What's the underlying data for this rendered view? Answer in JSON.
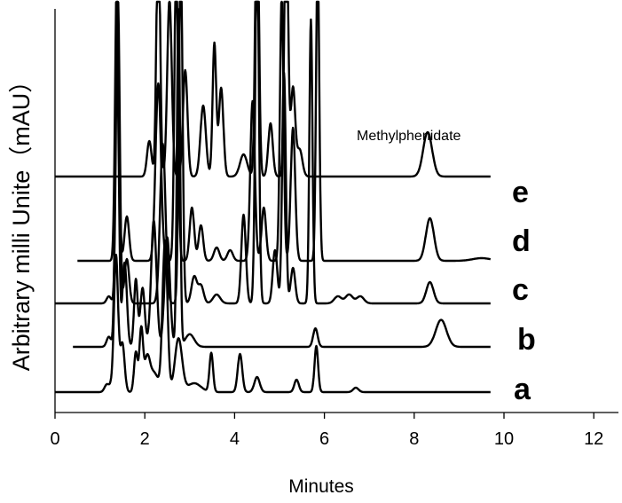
{
  "chart_data": {
    "type": "line",
    "title": "",
    "xlabel": "Minutes",
    "ylabel": "Arbitrary milli Unite（mAU）",
    "xlim": [
      0,
      12.5
    ],
    "x_ticks": [
      "0",
      "2",
      "4",
      "6",
      "8",
      "10",
      "12"
    ],
    "grid": false,
    "annotation": "Methylphenidate",
    "series": [
      {
        "name": "a",
        "baseline": 0,
        "peaks": [
          [
            1.15,
            8,
            0.05
          ],
          [
            1.28,
            9,
            0.06
          ],
          [
            1.36,
            150,
            0.045
          ],
          [
            1.5,
            55,
            0.05
          ],
          [
            1.8,
            45,
            0.04
          ],
          [
            1.92,
            70,
            0.04
          ],
          [
            2.05,
            35,
            0.06
          ],
          [
            2.2,
            22,
            0.1
          ],
          [
            2.45,
            170,
            0.055
          ],
          [
            2.75,
            60,
            0.08
          ],
          [
            3.1,
            10,
            0.15
          ],
          [
            3.48,
            44,
            0.04
          ],
          [
            4.12,
            43,
            0.05
          ],
          [
            4.5,
            17,
            0.06
          ],
          [
            5.38,
            14,
            0.05
          ],
          [
            5.82,
            52,
            0.04
          ],
          [
            6.7,
            5,
            0.06
          ]
        ]
      },
      {
        "name": "b",
        "baseline": 0,
        "peaks": [
          [
            1.2,
            12,
            0.05
          ],
          [
            1.38,
            350,
            0.04
          ],
          [
            1.55,
            100,
            0.05
          ],
          [
            1.8,
            80,
            0.04
          ],
          [
            1.95,
            70,
            0.05
          ],
          [
            2.2,
            150,
            0.06
          ],
          [
            2.5,
            130,
            0.06
          ],
          [
            2.75,
            400,
            0.035
          ],
          [
            3.0,
            15,
            0.1
          ],
          [
            5.8,
            22,
            0.05
          ],
          [
            8.6,
            32,
            0.12
          ]
        ]
      },
      {
        "name": "c",
        "baseline": 0,
        "peaks": [
          [
            1.2,
            8,
            0.05
          ],
          [
            1.4,
            350,
            0.04
          ],
          [
            1.6,
            50,
            0.05
          ],
          [
            2.4,
            180,
            0.06
          ],
          [
            2.8,
            400,
            0.04
          ],
          [
            3.1,
            30,
            0.06
          ],
          [
            3.25,
            20,
            0.06
          ],
          [
            3.6,
            10,
            0.08
          ],
          [
            4.2,
            100,
            0.05
          ],
          [
            4.5,
            420,
            0.04
          ],
          [
            4.9,
            60,
            0.05
          ],
          [
            5.1,
            260,
            0.04
          ],
          [
            5.3,
            40,
            0.05
          ],
          [
            5.7,
            320,
            0.035
          ],
          [
            6.3,
            8,
            0.08
          ],
          [
            6.55,
            10,
            0.08
          ],
          [
            6.8,
            8,
            0.08
          ],
          [
            8.35,
            24,
            0.08
          ]
        ]
      },
      {
        "name": "d",
        "baseline": 0,
        "peaks": [
          [
            1.38,
            330,
            0.04
          ],
          [
            1.6,
            50,
            0.05
          ],
          [
            2.3,
            200,
            0.06
          ],
          [
            2.7,
            350,
            0.04
          ],
          [
            3.05,
            60,
            0.05
          ],
          [
            3.25,
            40,
            0.05
          ],
          [
            3.6,
            15,
            0.06
          ],
          [
            3.9,
            12,
            0.06
          ],
          [
            4.4,
            180,
            0.05
          ],
          [
            4.65,
            60,
            0.05
          ],
          [
            5.05,
            300,
            0.04
          ],
          [
            5.3,
            150,
            0.05
          ],
          [
            5.85,
            350,
            0.035
          ],
          [
            8.35,
            48,
            0.09
          ],
          [
            9.5,
            3,
            0.2
          ]
        ]
      },
      {
        "name": "e",
        "baseline": 0,
        "peaks": [
          [
            2.1,
            40,
            0.05
          ],
          [
            2.3,
            300,
            0.04
          ],
          [
            2.55,
            200,
            0.05
          ],
          [
            2.9,
            120,
            0.05
          ],
          [
            3.3,
            80,
            0.06
          ],
          [
            3.55,
            150,
            0.04
          ],
          [
            3.7,
            100,
            0.05
          ],
          [
            4.2,
            25,
            0.08
          ],
          [
            4.5,
            350,
            0.04
          ],
          [
            4.8,
            60,
            0.05
          ],
          [
            5.15,
            330,
            0.04
          ],
          [
            5.3,
            100,
            0.05
          ],
          [
            5.45,
            30,
            0.06
          ],
          [
            8.3,
            50,
            0.1
          ]
        ]
      }
    ]
  }
}
